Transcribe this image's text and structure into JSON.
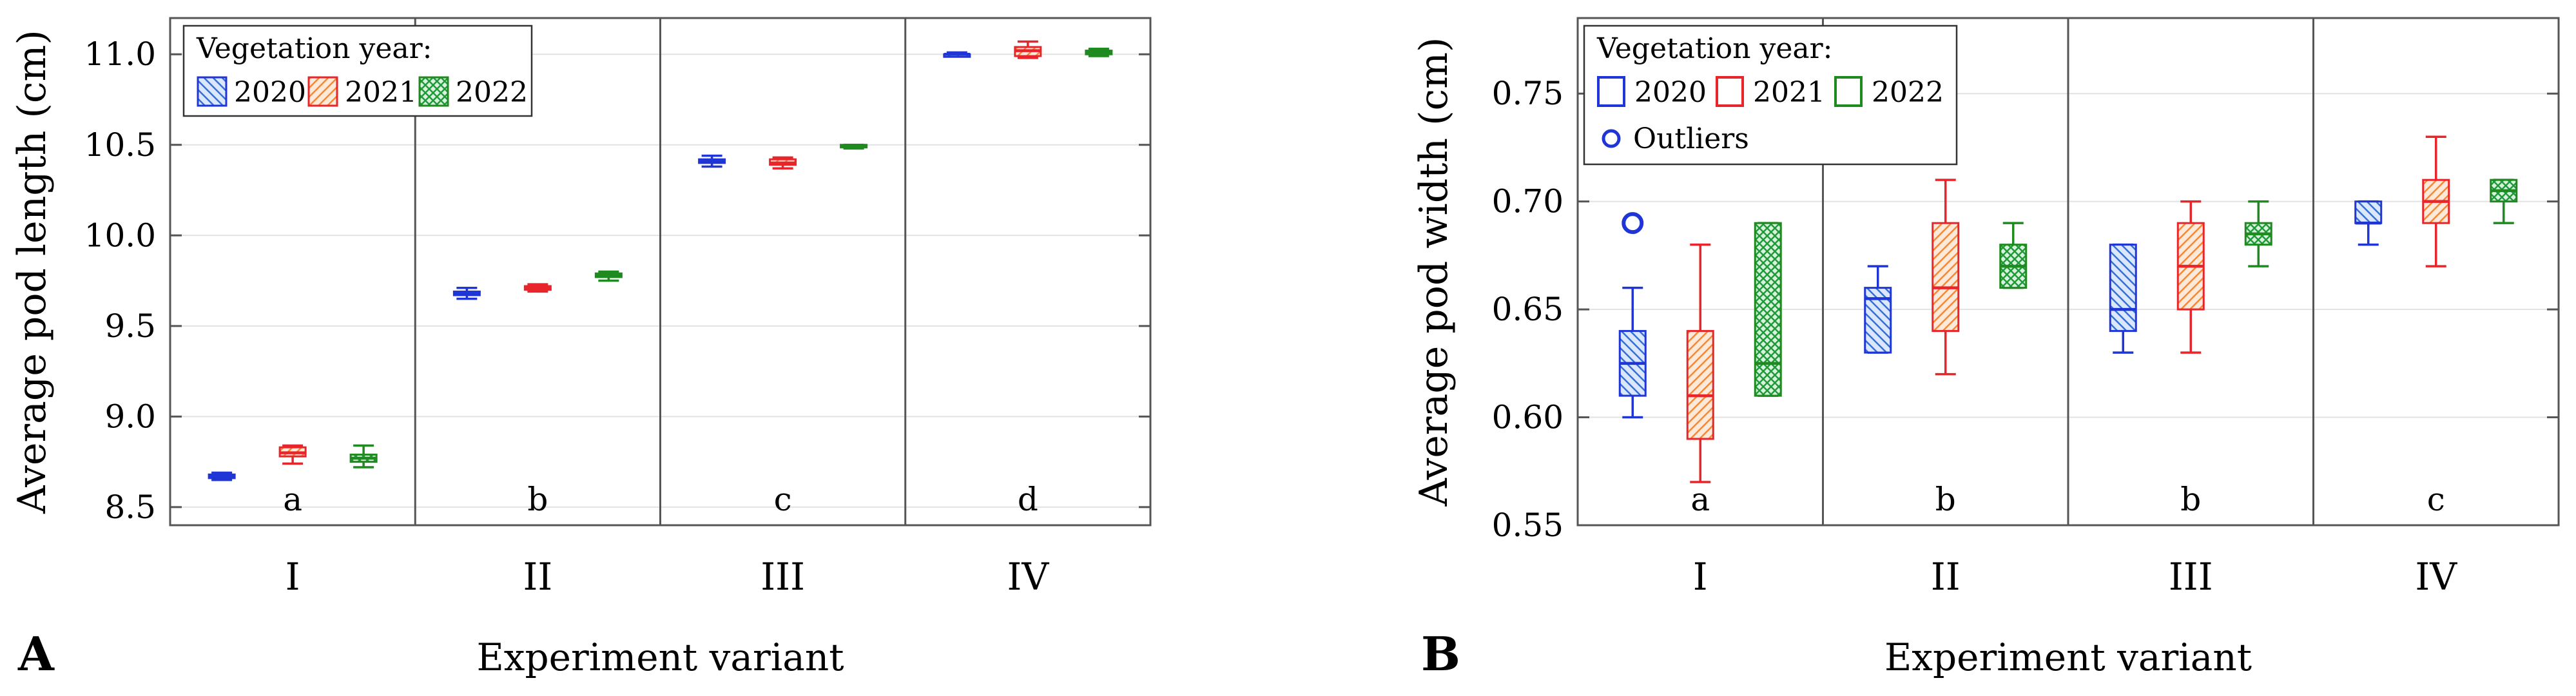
{
  "chart_data": [
    {
      "type": "box",
      "panel_label": "A",
      "ylabel": "Average pod length (cm)",
      "xlabel": "Experiment variant",
      "ylim": [
        8.4,
        11.2
      ],
      "yticks": [
        "8.5",
        "9.0",
        "9.5",
        "10.0",
        "10.5",
        "11.0"
      ],
      "ytick_values": [
        8.5,
        9.0,
        9.5,
        10.0,
        10.5,
        11.0
      ],
      "categories": [
        "I",
        "II",
        "III",
        "IV"
      ],
      "group_letters": [
        "a",
        "b",
        "c",
        "d"
      ],
      "legend": {
        "title": "Vegetation year:",
        "entries": [
          "2020",
          "2021",
          "2022"
        ],
        "placement": "top-left"
      },
      "series": [
        {
          "name": "2020",
          "color": "#1f35d6",
          "fill_pattern": "diagonal-back",
          "boxes": [
            {
              "min": 8.65,
              "q1": 8.66,
              "median": 8.67,
              "q3": 8.68,
              "max": 8.69
            },
            {
              "min": 9.65,
              "q1": 9.67,
              "median": 9.68,
              "q3": 9.69,
              "max": 9.71
            },
            {
              "min": 10.38,
              "q1": 10.4,
              "median": 10.41,
              "q3": 10.42,
              "max": 10.44
            },
            {
              "min": 10.99,
              "q1": 11.0,
              "median": 11.0,
              "q3": 11.0,
              "max": 11.01
            }
          ]
        },
        {
          "name": "2021",
          "color": "#e8252a",
          "fill_pattern": "diagonal-forward",
          "boxes": [
            {
              "min": 8.74,
              "q1": 8.78,
              "median": 8.8,
              "q3": 8.83,
              "max": 8.84
            },
            {
              "min": 9.69,
              "q1": 9.7,
              "median": 9.71,
              "q3": 9.72,
              "max": 9.73
            },
            {
              "min": 10.37,
              "q1": 10.39,
              "median": 10.4,
              "q3": 10.42,
              "max": 10.43
            },
            {
              "min": 10.98,
              "q1": 10.99,
              "median": 11.02,
              "q3": 11.04,
              "max": 11.07
            }
          ]
        },
        {
          "name": "2022",
          "color": "#1f8a1f",
          "fill_pattern": "crosshatch",
          "boxes": [
            {
              "min": 8.72,
              "q1": 8.75,
              "median": 8.77,
              "q3": 8.79,
              "max": 8.84
            },
            {
              "min": 9.75,
              "q1": 9.77,
              "median": 9.78,
              "q3": 9.79,
              "max": 9.8
            },
            {
              "min": 10.48,
              "q1": 10.49,
              "median": 10.49,
              "q3": 10.5,
              "max": 10.5
            },
            {
              "min": 10.99,
              "q1": 11.0,
              "median": 11.01,
              "q3": 11.02,
              "max": 11.03
            }
          ]
        }
      ]
    },
    {
      "type": "box",
      "panel_label": "B",
      "ylabel": "Average pod width (cm)",
      "xlabel": "Experiment variant",
      "ylim": [
        0.55,
        0.785
      ],
      "yticks": [
        "0.55",
        "0.60",
        "0.65",
        "0.70",
        "0.75"
      ],
      "ytick_values": [
        0.55,
        0.6,
        0.65,
        0.7,
        0.75
      ],
      "categories": [
        "I",
        "II",
        "III",
        "IV"
      ],
      "group_letters": [
        "a",
        "b",
        "b",
        "c"
      ],
      "legend": {
        "title": "Vegetation year:",
        "entries": [
          "2020",
          "2021",
          "2022"
        ],
        "outliers_label": "Outliers",
        "placement": "top-left"
      },
      "series": [
        {
          "name": "2020",
          "color": "#1f35d6",
          "fill_pattern": "diagonal-back",
          "boxes": [
            {
              "min": 0.6,
              "q1": 0.61,
              "median": 0.625,
              "q3": 0.64,
              "max": 0.66,
              "outliers": [
                0.69
              ]
            },
            {
              "min": 0.63,
              "q1": 0.63,
              "median": 0.655,
              "q3": 0.66,
              "max": 0.67,
              "outliers": []
            },
            {
              "min": 0.63,
              "q1": 0.64,
              "median": 0.65,
              "q3": 0.68,
              "max": 0.68,
              "outliers": []
            },
            {
              "min": 0.68,
              "q1": 0.69,
              "median": 0.69,
              "q3": 0.7,
              "max": 0.7,
              "outliers": []
            }
          ]
        },
        {
          "name": "2021",
          "color": "#e8252a",
          "fill_pattern": "diagonal-forward",
          "boxes": [
            {
              "min": 0.57,
              "q1": 0.59,
              "median": 0.61,
              "q3": 0.64,
              "max": 0.68,
              "outliers": []
            },
            {
              "min": 0.62,
              "q1": 0.64,
              "median": 0.66,
              "q3": 0.69,
              "max": 0.71,
              "outliers": []
            },
            {
              "min": 0.63,
              "q1": 0.65,
              "median": 0.67,
              "q3": 0.69,
              "max": 0.7,
              "outliers": []
            },
            {
              "min": 0.67,
              "q1": 0.69,
              "median": 0.7,
              "q3": 0.71,
              "max": 0.73,
              "outliers": []
            }
          ]
        },
        {
          "name": "2022",
          "color": "#1f8a1f",
          "fill_pattern": "crosshatch",
          "boxes": [
            {
              "min": 0.61,
              "q1": 0.61,
              "median": 0.625,
              "q3": 0.69,
              "max": 0.69,
              "outliers": []
            },
            {
              "min": 0.66,
              "q1": 0.66,
              "median": 0.67,
              "q3": 0.68,
              "max": 0.69,
              "outliers": []
            },
            {
              "min": 0.67,
              "q1": 0.68,
              "median": 0.685,
              "q3": 0.69,
              "max": 0.7,
              "outliers": []
            },
            {
              "min": 0.69,
              "q1": 0.7,
              "median": 0.705,
              "q3": 0.71,
              "max": 0.71,
              "outliers": []
            }
          ]
        }
      ]
    }
  ]
}
